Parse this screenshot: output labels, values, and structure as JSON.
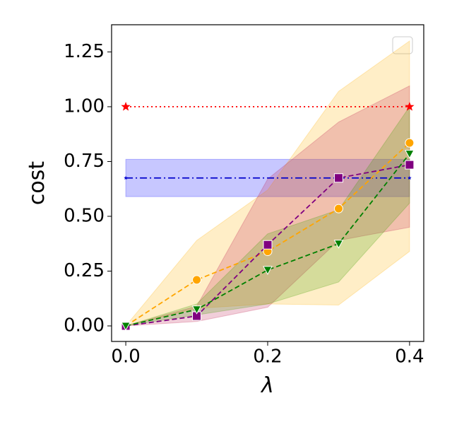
{
  "chart_data": {
    "type": "line",
    "x_label": "λ",
    "y_label": "cost",
    "x": [
      0,
      0.1,
      0.2,
      0.3,
      0.4
    ],
    "xlim": [
      -0.02,
      0.42
    ],
    "ylim": [
      -0.071,
      1.374
    ],
    "xticks": [
      {
        "value": 0,
        "label": "0.0"
      },
      {
        "value": 0.2,
        "label": "0.2"
      },
      {
        "value": 0.4,
        "label": "0.4"
      }
    ],
    "yticks": [
      {
        "value": 0,
        "label": "0.00"
      },
      {
        "value": 0.25,
        "label": "0.25"
      },
      {
        "value": 0.5,
        "label": "0.50"
      },
      {
        "value": 0.75,
        "label": "0.75"
      },
      {
        "value": 1,
        "label": "1.00"
      },
      {
        "value": 1.25,
        "label": "1.25"
      }
    ],
    "series": [
      {
        "color": "#ff0000",
        "marker": "star",
        "linestyle": "dotted",
        "x": [
          0,
          0.4
        ],
        "values": [
          1,
          1
        ]
      },
      {
        "color": "#0000cc",
        "band_color": "#0000ff",
        "marker": "star",
        "linestyle": "dashdot",
        "x": [
          0,
          0.4
        ],
        "values": [
          0.675,
          0.675
        ],
        "lower": [
          0.59,
          0.59
        ],
        "upper": [
          0.76,
          0.76
        ]
      },
      {
        "color": "#ffa500",
        "band_color": "#ffb000",
        "marker": "circle",
        "linestyle": "dashed",
        "values": [
          0,
          0.21,
          0.34,
          0.535,
          0.835
        ],
        "lower": [
          0,
          0.08,
          0.1,
          0.095,
          0.34
        ],
        "upper": [
          0,
          0.39,
          0.62,
          1.07,
          1.3
        ]
      },
      {
        "color": "#800080",
        "band_color": "#c02050",
        "marker": "square",
        "linestyle": "dashed",
        "values": [
          0,
          0.045,
          0.37,
          0.675,
          0.735
        ],
        "lower": [
          0,
          0.02,
          0.085,
          0.39,
          0.45
        ],
        "upper": [
          0,
          0.09,
          0.67,
          0.93,
          1.095
        ]
      },
      {
        "color": "#008000",
        "band_color": "#40a000",
        "marker": "triangle-down",
        "linestyle": "dashed",
        "values": [
          0,
          0.075,
          0.255,
          0.375,
          0.785
        ],
        "lower": [
          0,
          0.05,
          0.1,
          0.2,
          0.56
        ],
        "upper": [
          0,
          0.1,
          0.42,
          0.53,
          1.0
        ]
      }
    ]
  }
}
